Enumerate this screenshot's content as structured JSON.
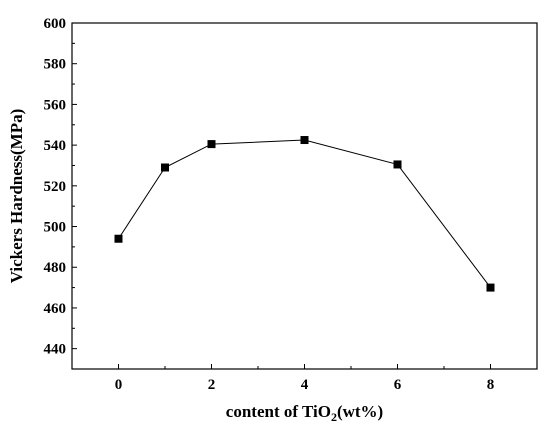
{
  "chart_data": {
    "type": "line",
    "xlabel_prefix": "content of TiO",
    "xlabel_sub": "2",
    "xlabel_suffix": "(wt%)",
    "ylabel": "Vickers Hardness(MPa)",
    "xlim": [
      -1,
      9
    ],
    "ylim": [
      430,
      600
    ],
    "xticks": [
      0,
      2,
      4,
      6,
      8
    ],
    "xtick_labels": [
      "0",
      "2",
      "4",
      "6",
      "8"
    ],
    "yticks": [
      440,
      460,
      480,
      500,
      520,
      540,
      560,
      580,
      600
    ],
    "ytick_labels": [
      "440",
      "460",
      "480",
      "500",
      "520",
      "540",
      "560",
      "580",
      "600"
    ],
    "grid": false,
    "series": [
      {
        "marker": "square",
        "color": "#000000",
        "x": [
          0,
          1,
          2,
          4,
          6,
          8
        ],
        "y": [
          494,
          529,
          540.5,
          542.5,
          530.5,
          470
        ]
      }
    ]
  }
}
